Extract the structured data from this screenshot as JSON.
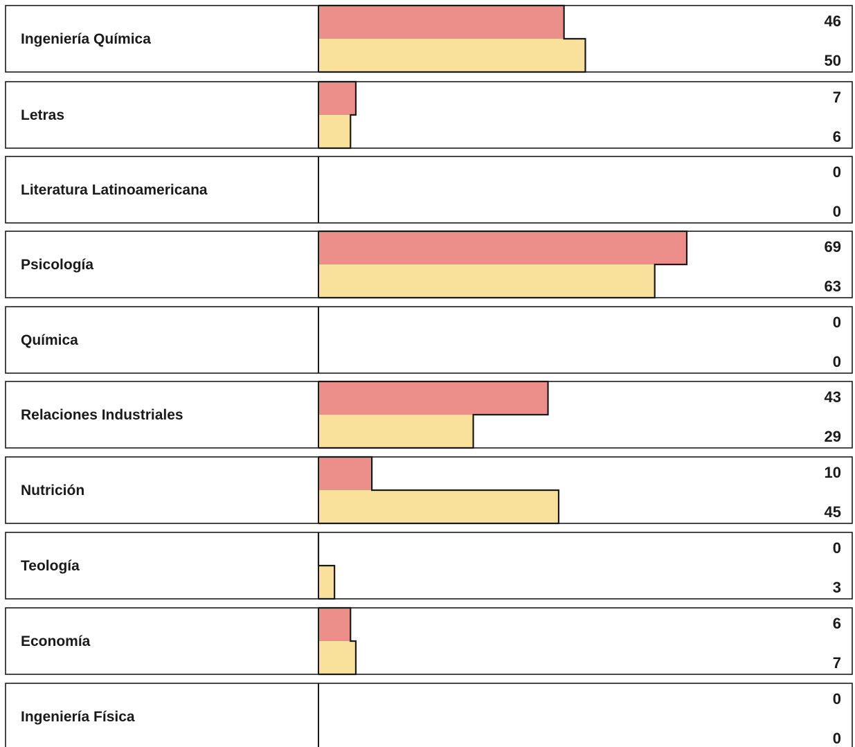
{
  "chart_data": {
    "type": "bar",
    "orientation": "horizontal",
    "categories": [
      "Ingeniería Química",
      "Letras",
      "Literatura Latinoamericana",
      "Psicología",
      "Química",
      "Relaciones Industriales",
      "Nutrición",
      "Teología",
      "Economía",
      "Ingeniería Física"
    ],
    "series": [
      {
        "values": [
          46,
          7,
          0,
          69,
          0,
          43,
          10,
          0,
          6,
          0
        ]
      },
      {
        "values": [
          50,
          6,
          0,
          63,
          0,
          29,
          45,
          3,
          7,
          0
        ]
      }
    ],
    "xlim": [
      0,
      100
    ],
    "grid": false,
    "legend": "none",
    "colors": {
      "series_1": "#ec8f8a",
      "series_2": "#f9e09b",
      "outline": "#1a1a1a"
    }
  }
}
